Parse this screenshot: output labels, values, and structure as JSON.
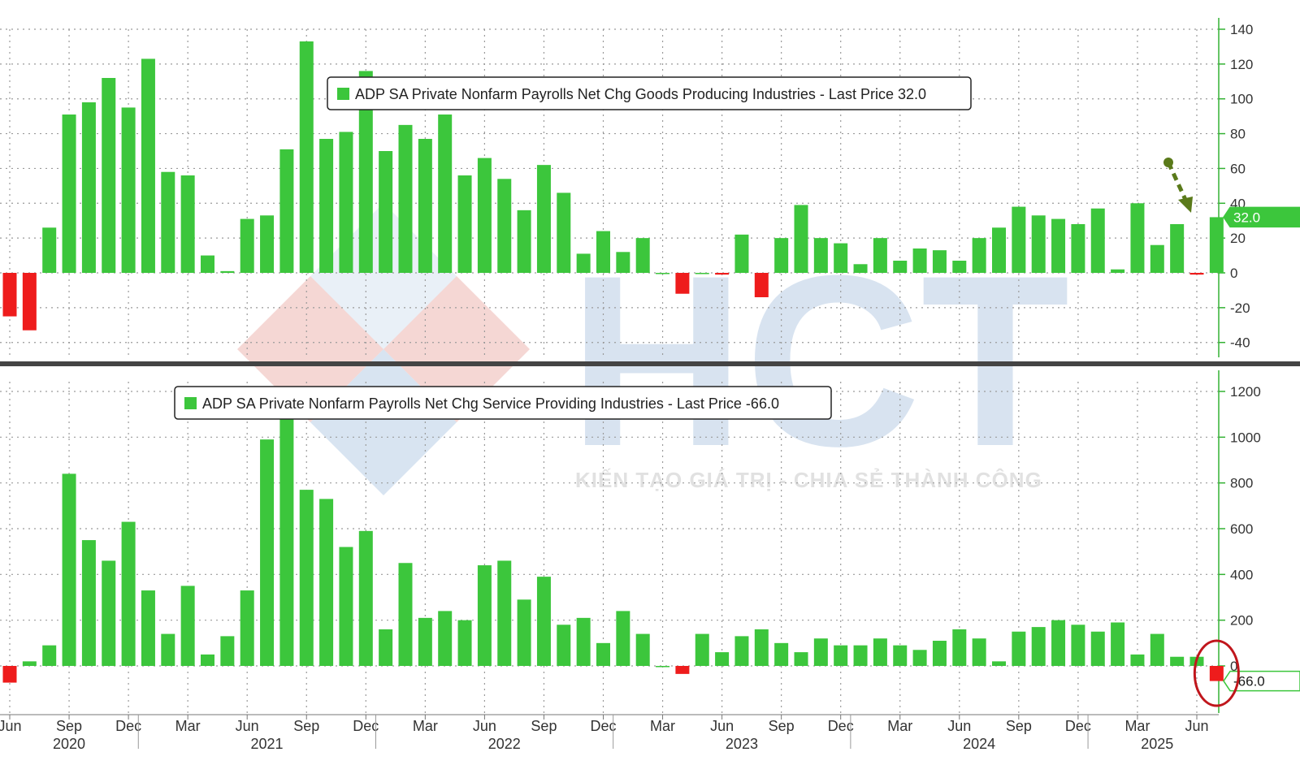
{
  "colors": {
    "positive": "#3cc63c",
    "negative": "#ee1c1c",
    "axis": "#33b233",
    "divider": "#444444",
    "annotation_arrow": "#5a7a1a",
    "annotation_circle": "#c0161c"
  },
  "watermark": {
    "logo_text": "HCT",
    "tagline": "KIẾN TẠO GIÁ TRỊ - CHIA SẺ THÀNH CÔNG"
  },
  "x_axis": {
    "month_labels": [
      "Jun",
      "Sep",
      "Dec",
      "Mar",
      "Jun",
      "Sep",
      "Dec",
      "Mar",
      "Jun",
      "Sep",
      "Dec",
      "Mar",
      "Jun",
      "Sep",
      "Dec",
      "Mar",
      "Jun",
      "Sep",
      "Dec",
      "Mar",
      "Jun"
    ],
    "year_labels": [
      "2020",
      "2021",
      "2022",
      "2023",
      "2024",
      "2025"
    ]
  },
  "chart_data": [
    {
      "type": "bar",
      "legend": "ADP SA Private Nonfarm Payrolls Net Chg Goods Producing Industries - Last Price 32.0",
      "last_value_label": "32.0",
      "ylim": [
        -50,
        145
      ],
      "yticks": [
        140,
        120,
        100,
        80,
        60,
        40,
        20,
        0,
        -20,
        -40
      ],
      "grid": true,
      "annotation": "arrow pointing to last bar",
      "values": [
        -25,
        -33,
        26,
        91,
        98,
        112,
        95,
        123,
        58,
        56,
        10,
        1,
        31,
        33,
        71,
        133,
        77,
        81,
        116,
        70,
        85,
        77,
        91,
        56,
        66,
        54,
        36,
        62,
        46,
        11,
        24,
        12,
        20,
        0,
        -12,
        0,
        -1,
        22,
        -14,
        20,
        39,
        20,
        17,
        5,
        20,
        7,
        14,
        13,
        7,
        20,
        26,
        38,
        33,
        31,
        28,
        37,
        2,
        40,
        16,
        28,
        -1,
        32
      ]
    },
    {
      "type": "bar",
      "legend": "ADP SA Private Nonfarm Payrolls Net Chg Service Providing Industries - Last Price -66.0",
      "last_value_label": "-66.0",
      "ylim": [
        -200,
        1320
      ],
      "yticks": [
        1200,
        1000,
        800,
        600,
        400,
        200,
        0
      ],
      "grid": true,
      "annotation": "circle around last bar",
      "values": [
        -73,
        20,
        90,
        840,
        550,
        460,
        630,
        330,
        140,
        350,
        50,
        130,
        330,
        990,
        1100,
        770,
        730,
        520,
        590,
        160,
        450,
        210,
        240,
        200,
        440,
        460,
        290,
        390,
        180,
        210,
        100,
        240,
        140,
        0,
        -35,
        140,
        60,
        130,
        160,
        100,
        60,
        120,
        90,
        90,
        120,
        90,
        70,
        110,
        160,
        120,
        20,
        150,
        170,
        200,
        180,
        150,
        190,
        50,
        140,
        40,
        40,
        -66
      ]
    }
  ]
}
